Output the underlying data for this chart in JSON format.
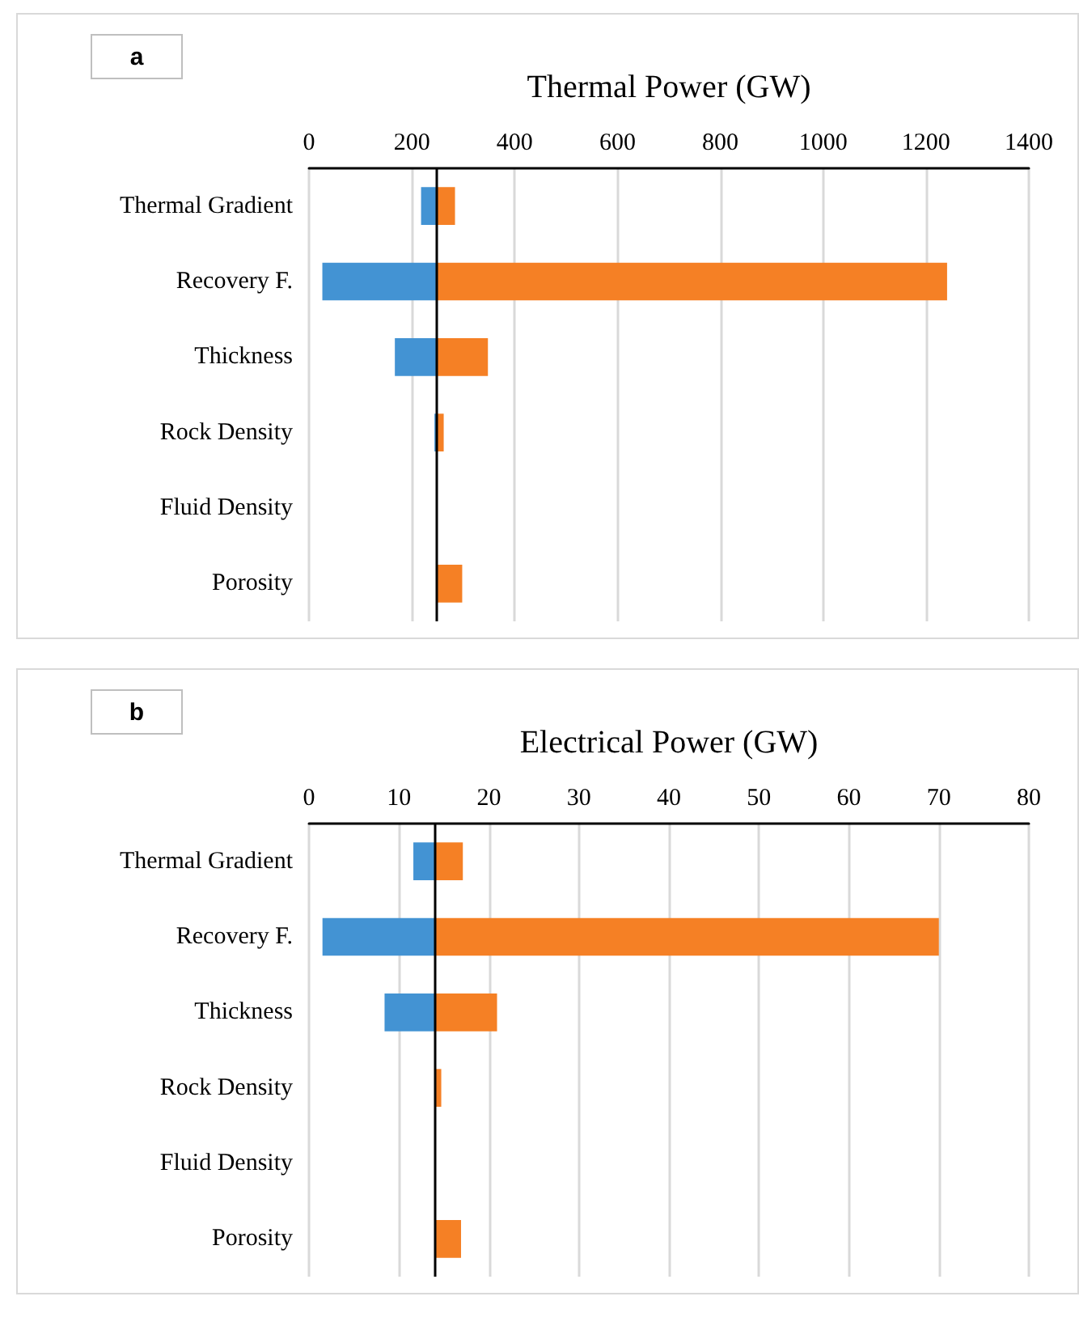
{
  "chart_data": [
    {
      "type": "bar",
      "orientation": "horizontal",
      "xlabel": "Thermal Power (GW)",
      "annotations": [
        "a"
      ],
      "categories": [
        "Thermal Gradient",
        "Recovery F.",
        "Thickness",
        "Rock Density",
        "Fluid Density",
        "Porosity"
      ],
      "series": [
        {
          "color": "#4393d3",
          "base": [
            218,
            26,
            167,
            244,
            null,
            null
          ],
          "values": [
            31,
            223,
            82,
            5,
            null,
            null
          ]
        },
        {
          "color": "#f58025",
          "base": [
            249,
            249,
            249,
            249,
            null,
            249
          ],
          "values": [
            35,
            992,
            99,
            13,
            null,
            49
          ]
        }
      ],
      "xlim": [
        0,
        1400
      ],
      "xticks": [
        0,
        200,
        400,
        600,
        800,
        1000,
        1200,
        1400
      ],
      "grid": "x",
      "ref_lines": [
        {
          "axis": "x",
          "value": 249,
          "color": "#000000"
        }
      ]
    },
    {
      "type": "bar",
      "orientation": "horizontal",
      "xlabel": "Electrical Power (GW)",
      "annotations": [
        "b"
      ],
      "categories": [
        "Thermal Gradient",
        "Recovery F.",
        "Thickness",
        "Rock Density",
        "Fluid Density",
        "Porosity"
      ],
      "series": [
        {
          "color": "#4393d3",
          "base": [
            11.6,
            1.5,
            8.4,
            null,
            null,
            null
          ],
          "values": [
            2.4,
            12.5,
            5.6,
            null,
            null,
            null
          ]
        },
        {
          "color": "#f58025",
          "base": [
            14,
            14,
            14,
            14,
            null,
            14
          ],
          "values": [
            3.1,
            56,
            6.9,
            0.7,
            null,
            2.9
          ]
        }
      ],
      "xlim": [
        0,
        80
      ],
      "xticks": [
        0,
        10,
        20,
        30,
        40,
        50,
        60,
        70,
        80
      ],
      "grid": "x",
      "ref_lines": [
        {
          "axis": "x",
          "value": 14,
          "color": "#000000"
        }
      ]
    }
  ]
}
